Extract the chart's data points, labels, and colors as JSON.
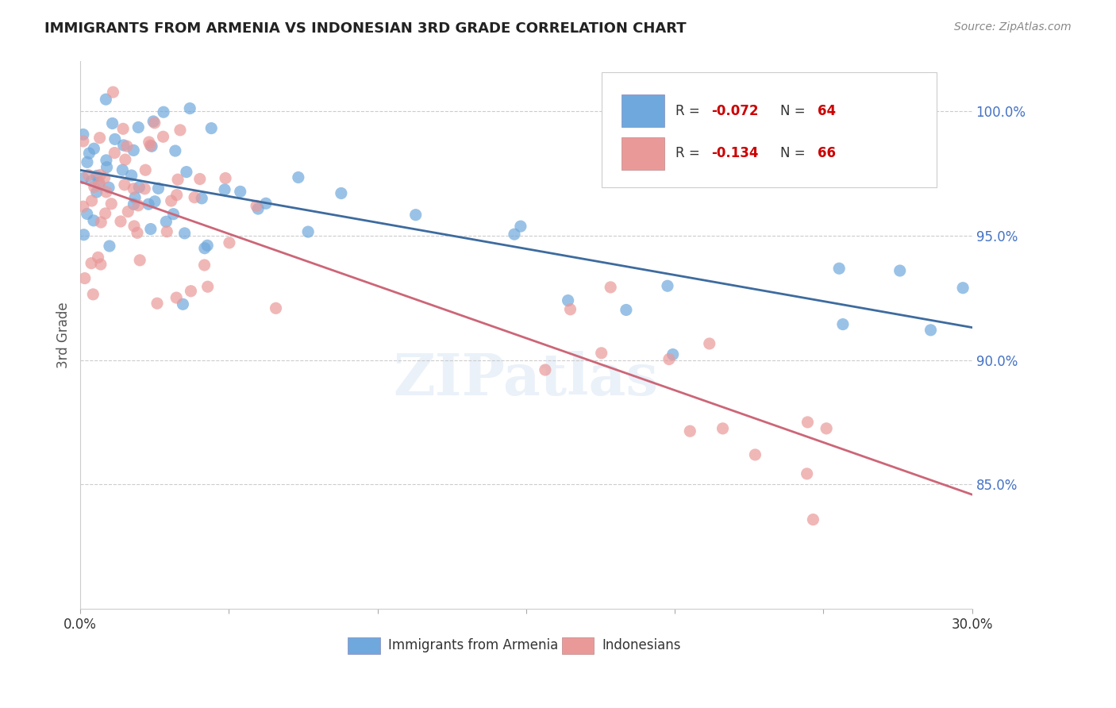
{
  "title": "IMMIGRANTS FROM ARMENIA VS INDONESIAN 3RD GRADE CORRELATION CHART",
  "source": "Source: ZipAtlas.com",
  "ylabel": "3rd Grade",
  "legend_blue_r": "-0.072",
  "legend_blue_n": "64",
  "legend_pink_r": "-0.134",
  "legend_pink_n": "66",
  "legend_blue_label": "Immigrants from Armenia",
  "legend_pink_label": "Indonesians",
  "y_ticks": [
    "100.0%",
    "95.0%",
    "90.0%",
    "85.0%"
  ],
  "y_tick_vals": [
    1.0,
    0.95,
    0.9,
    0.85
  ],
  "x_range": [
    0.0,
    0.3
  ],
  "y_range": [
    0.8,
    1.02
  ],
  "blue_color": "#6fa8dc",
  "pink_color": "#ea9999",
  "blue_line_color": "#3d6b9e",
  "pink_line_color": "#cc6677",
  "background_color": "#ffffff"
}
